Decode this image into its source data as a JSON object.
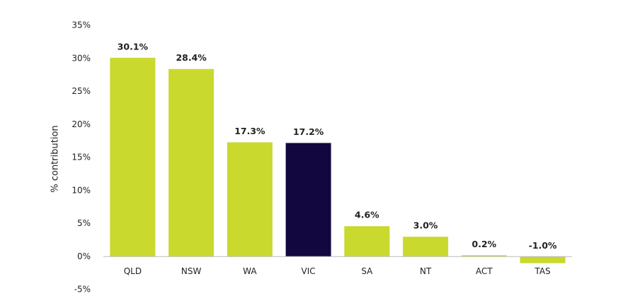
{
  "chart_data": {
    "type": "bar",
    "y_label": "% contribution",
    "categories": [
      "QLD",
      "NSW",
      "WA",
      "VIC",
      "SA",
      "NT",
      "ACT",
      "TAS"
    ],
    "values": [
      30.1,
      28.4,
      17.3,
      17.2,
      4.6,
      3.0,
      0.2,
      -1.0
    ],
    "value_labels": [
      "30.1%",
      "28.4%",
      "17.3%",
      "17.2%",
      "4.6%",
      "3.0%",
      "0.2%",
      "-1.0%"
    ],
    "colors": [
      "#c9d92e",
      "#c9d92e",
      "#c9d92e",
      "#12083f",
      "#c9d92e",
      "#c9d92e",
      "#c9d92e",
      "#c9d92e"
    ],
    "ylim": [
      -5,
      35
    ],
    "yticks": [
      {
        "value": -5,
        "label": "-5%"
      },
      {
        "value": 0,
        "label": "0%"
      },
      {
        "value": 5,
        "label": "5%"
      },
      {
        "value": 10,
        "label": "10%"
      },
      {
        "value": 15,
        "label": "15%"
      },
      {
        "value": 20,
        "label": "20%"
      },
      {
        "value": 25,
        "label": "25%"
      },
      {
        "value": 30,
        "label": "30%"
      },
      {
        "value": 35,
        "label": "35%"
      }
    ],
    "grid": false
  }
}
